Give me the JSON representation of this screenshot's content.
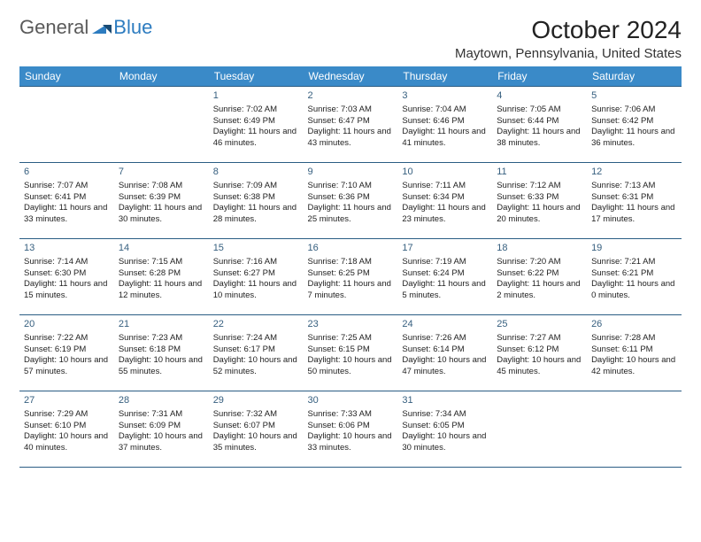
{
  "logo": {
    "text1": "General",
    "text2": "Blue"
  },
  "title": "October 2024",
  "location": "Maytown, Pennsylvania, United States",
  "day_headers": [
    "Sunday",
    "Monday",
    "Tuesday",
    "Wednesday",
    "Thursday",
    "Friday",
    "Saturday"
  ],
  "colors": {
    "header_bg": "#3a8ac8",
    "header_text": "#ffffff",
    "border": "#2b5d84",
    "day_number": "#365f7f",
    "shaded_row_bg": "#f0f2f4",
    "logo_general": "#5a5a5a",
    "logo_blue": "#2d7cc0"
  },
  "weeks": [
    [
      {
        "day": "",
        "lines": []
      },
      {
        "day": "",
        "lines": []
      },
      {
        "day": "1",
        "lines": [
          "Sunrise: 7:02 AM",
          "Sunset: 6:49 PM",
          "Daylight: 11 hours and 46 minutes."
        ]
      },
      {
        "day": "2",
        "lines": [
          "Sunrise: 7:03 AM",
          "Sunset: 6:47 PM",
          "Daylight: 11 hours and 43 minutes."
        ]
      },
      {
        "day": "3",
        "lines": [
          "Sunrise: 7:04 AM",
          "Sunset: 6:46 PM",
          "Daylight: 11 hours and 41 minutes."
        ]
      },
      {
        "day": "4",
        "lines": [
          "Sunrise: 7:05 AM",
          "Sunset: 6:44 PM",
          "Daylight: 11 hours and 38 minutes."
        ]
      },
      {
        "day": "5",
        "lines": [
          "Sunrise: 7:06 AM",
          "Sunset: 6:42 PM",
          "Daylight: 11 hours and 36 minutes."
        ]
      }
    ],
    [
      {
        "day": "6",
        "lines": [
          "Sunrise: 7:07 AM",
          "Sunset: 6:41 PM",
          "Daylight: 11 hours and 33 minutes."
        ]
      },
      {
        "day": "7",
        "lines": [
          "Sunrise: 7:08 AM",
          "Sunset: 6:39 PM",
          "Daylight: 11 hours and 30 minutes."
        ]
      },
      {
        "day": "8",
        "lines": [
          "Sunrise: 7:09 AM",
          "Sunset: 6:38 PM",
          "Daylight: 11 hours and 28 minutes."
        ]
      },
      {
        "day": "9",
        "lines": [
          "Sunrise: 7:10 AM",
          "Sunset: 6:36 PM",
          "Daylight: 11 hours and 25 minutes."
        ]
      },
      {
        "day": "10",
        "lines": [
          "Sunrise: 7:11 AM",
          "Sunset: 6:34 PM",
          "Daylight: 11 hours and 23 minutes."
        ]
      },
      {
        "day": "11",
        "lines": [
          "Sunrise: 7:12 AM",
          "Sunset: 6:33 PM",
          "Daylight: 11 hours and 20 minutes."
        ]
      },
      {
        "day": "12",
        "lines": [
          "Sunrise: 7:13 AM",
          "Sunset: 6:31 PM",
          "Daylight: 11 hours and 17 minutes."
        ]
      }
    ],
    [
      {
        "day": "13",
        "lines": [
          "Sunrise: 7:14 AM",
          "Sunset: 6:30 PM",
          "Daylight: 11 hours and 15 minutes."
        ]
      },
      {
        "day": "14",
        "lines": [
          "Sunrise: 7:15 AM",
          "Sunset: 6:28 PM",
          "Daylight: 11 hours and 12 minutes."
        ]
      },
      {
        "day": "15",
        "lines": [
          "Sunrise: 7:16 AM",
          "Sunset: 6:27 PM",
          "Daylight: 11 hours and 10 minutes."
        ]
      },
      {
        "day": "16",
        "lines": [
          "Sunrise: 7:18 AM",
          "Sunset: 6:25 PM",
          "Daylight: 11 hours and 7 minutes."
        ]
      },
      {
        "day": "17",
        "lines": [
          "Sunrise: 7:19 AM",
          "Sunset: 6:24 PM",
          "Daylight: 11 hours and 5 minutes."
        ]
      },
      {
        "day": "18",
        "lines": [
          "Sunrise: 7:20 AM",
          "Sunset: 6:22 PM",
          "Daylight: 11 hours and 2 minutes."
        ]
      },
      {
        "day": "19",
        "lines": [
          "Sunrise: 7:21 AM",
          "Sunset: 6:21 PM",
          "Daylight: 11 hours and 0 minutes."
        ]
      }
    ],
    [
      {
        "day": "20",
        "lines": [
          "Sunrise: 7:22 AM",
          "Sunset: 6:19 PM",
          "Daylight: 10 hours and 57 minutes."
        ]
      },
      {
        "day": "21",
        "lines": [
          "Sunrise: 7:23 AM",
          "Sunset: 6:18 PM",
          "Daylight: 10 hours and 55 minutes."
        ]
      },
      {
        "day": "22",
        "lines": [
          "Sunrise: 7:24 AM",
          "Sunset: 6:17 PM",
          "Daylight: 10 hours and 52 minutes."
        ]
      },
      {
        "day": "23",
        "lines": [
          "Sunrise: 7:25 AM",
          "Sunset: 6:15 PM",
          "Daylight: 10 hours and 50 minutes."
        ]
      },
      {
        "day": "24",
        "lines": [
          "Sunrise: 7:26 AM",
          "Sunset: 6:14 PM",
          "Daylight: 10 hours and 47 minutes."
        ]
      },
      {
        "day": "25",
        "lines": [
          "Sunrise: 7:27 AM",
          "Sunset: 6:12 PM",
          "Daylight: 10 hours and 45 minutes."
        ]
      },
      {
        "day": "26",
        "lines": [
          "Sunrise: 7:28 AM",
          "Sunset: 6:11 PM",
          "Daylight: 10 hours and 42 minutes."
        ]
      }
    ],
    [
      {
        "day": "27",
        "lines": [
          "Sunrise: 7:29 AM",
          "Sunset: 6:10 PM",
          "Daylight: 10 hours and 40 minutes."
        ]
      },
      {
        "day": "28",
        "lines": [
          "Sunrise: 7:31 AM",
          "Sunset: 6:09 PM",
          "Daylight: 10 hours and 37 minutes."
        ]
      },
      {
        "day": "29",
        "lines": [
          "Sunrise: 7:32 AM",
          "Sunset: 6:07 PM",
          "Daylight: 10 hours and 35 minutes."
        ]
      },
      {
        "day": "30",
        "lines": [
          "Sunrise: 7:33 AM",
          "Sunset: 6:06 PM",
          "Daylight: 10 hours and 33 minutes."
        ]
      },
      {
        "day": "31",
        "lines": [
          "Sunrise: 7:34 AM",
          "Sunset: 6:05 PM",
          "Daylight: 10 hours and 30 minutes."
        ]
      },
      {
        "day": "",
        "lines": []
      },
      {
        "day": "",
        "lines": []
      }
    ]
  ]
}
